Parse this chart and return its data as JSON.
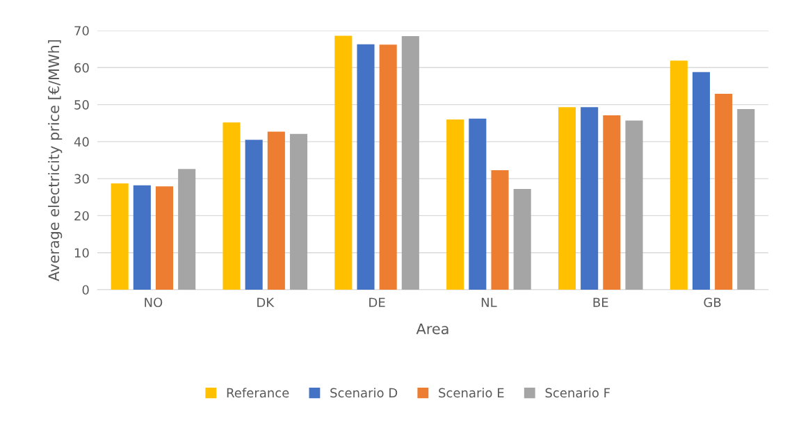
{
  "chart_data": {
    "type": "bar",
    "xlabel": "Area",
    "ylabel": "Average electricity price [€/MWh]",
    "categories": [
      "NO",
      "DK",
      "DE",
      "NL",
      "BE",
      "GB"
    ],
    "series": [
      {
        "name": "Referance",
        "color": "#ffc000",
        "values": [
          28.7,
          45.2,
          68.6,
          46.0,
          49.3,
          61.9
        ]
      },
      {
        "name": "Scenario D",
        "color": "#4472c4",
        "values": [
          28.2,
          40.5,
          66.3,
          46.2,
          49.3,
          58.8
        ]
      },
      {
        "name": "Scenario E",
        "color": "#ed7d31",
        "values": [
          27.9,
          42.7,
          66.2,
          32.3,
          47.1,
          52.9
        ]
      },
      {
        "name": "Scenario F",
        "color": "#a5a5a5",
        "values": [
          32.6,
          42.1,
          68.5,
          27.2,
          45.7,
          48.8
        ]
      }
    ],
    "ylim": [
      0,
      70
    ],
    "yticks": [
      0,
      10,
      20,
      30,
      40,
      50,
      60,
      70
    ],
    "grid": "y",
    "legend": "bottom"
  }
}
